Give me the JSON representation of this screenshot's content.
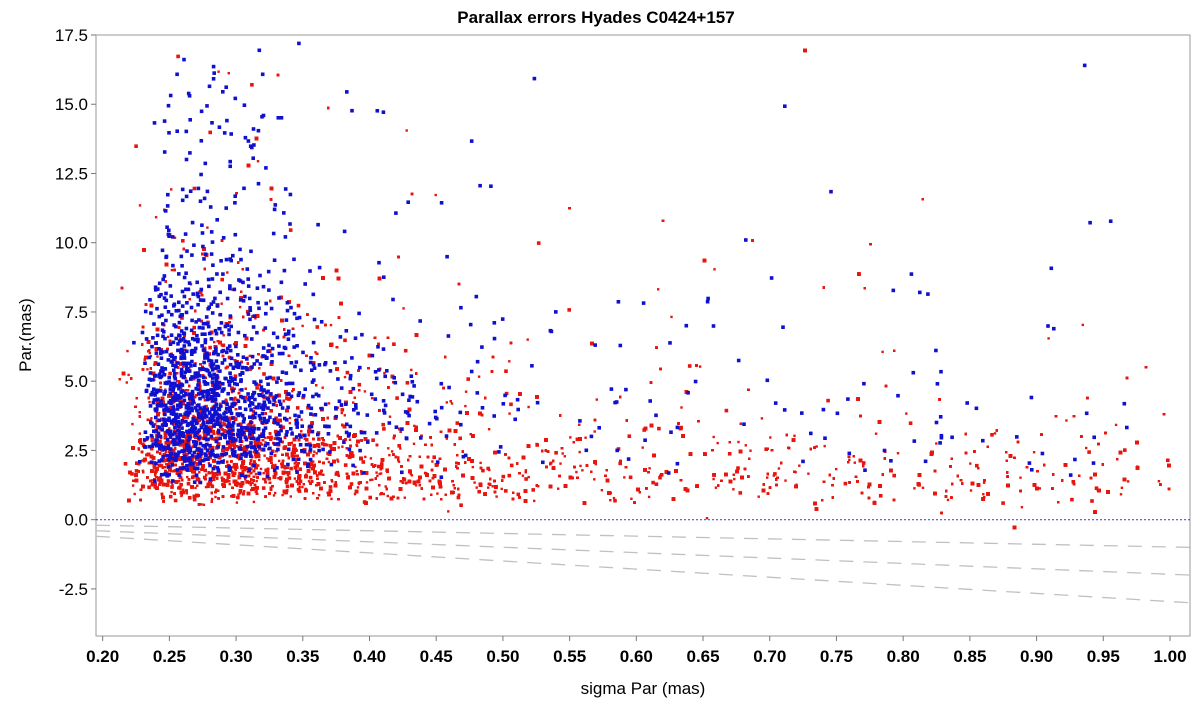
{
  "chart_data": {
    "type": "scatter",
    "title": "Parallax errors Hyades  C0424+157",
    "xlabel": "sigma Par (mas)",
    "ylabel": "Par.(mas)",
    "xlim": [
      0.195,
      1.015
    ],
    "ylim": [
      -4.2,
      17.5
    ],
    "x_ticks": [
      "0.20",
      "0.25",
      "0.30",
      "0.35",
      "0.40",
      "0.45",
      "0.50",
      "0.55",
      "0.60",
      "0.65",
      "0.70",
      "0.75",
      "0.80",
      "0.85",
      "0.90",
      "0.95",
      "1.00"
    ],
    "y_ticks": [
      "-2.5",
      "0.0",
      "2.5",
      "5.0",
      "7.5",
      "10.0",
      "12.5",
      "15.0",
      "17.5"
    ],
    "grid": false,
    "legend": "none",
    "colors": {
      "red_series": "#e8150f",
      "blue_series": "#1010d0",
      "zero_line": "#4a4aff",
      "ref_lines": "#c0c0c0"
    },
    "reference_lines": [
      {
        "style": "dotted",
        "y": 0.0
      },
      {
        "style": "dashed",
        "points": [
          [
            0.195,
            -0.2
          ],
          [
            1.015,
            -1.0
          ]
        ]
      },
      {
        "style": "dashed",
        "points": [
          [
            0.195,
            -0.4
          ],
          [
            1.015,
            -2.0
          ]
        ]
      },
      {
        "style": "dashed",
        "points": [
          [
            0.195,
            -0.6
          ],
          [
            1.015,
            -3.0
          ]
        ]
      }
    ],
    "series": [
      {
        "color": "red",
        "approx_count": 14000,
        "distribution": "dense at sigma 0.21-0.45, Par 0.5-7; sparse tail toward sigma 1.0 with Par 0-5"
      },
      {
        "color": "blue",
        "approx_count": 1500,
        "distribution": "concentrated at sigma 0.22-0.40, Par 1-15"
      }
    ]
  }
}
